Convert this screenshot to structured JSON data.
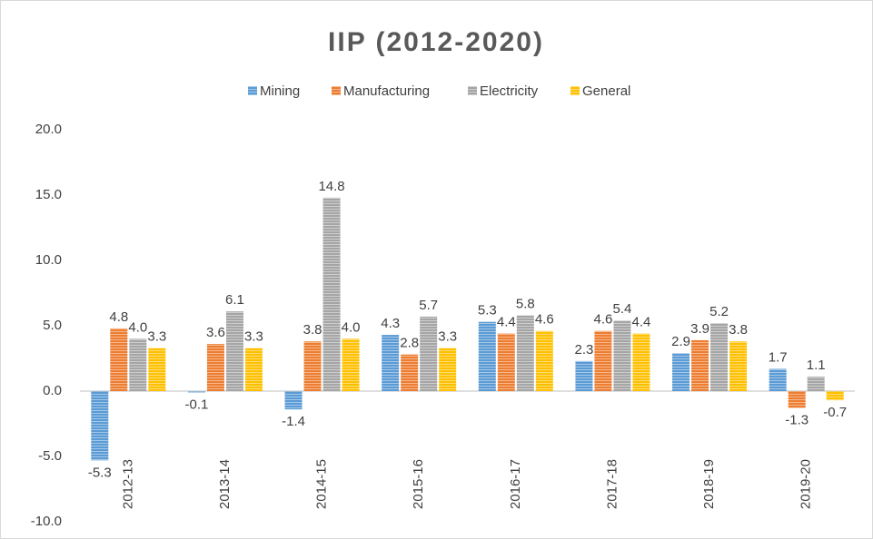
{
  "chart_data": {
    "type": "bar",
    "title": "IIP (2012-2020)",
    "categories": [
      "2012-13",
      "2013-14",
      "2014-15",
      "2015-16",
      "2016-17",
      "2017-18",
      "2018-19",
      "2019-20"
    ],
    "series": [
      {
        "name": "Mining",
        "color": "#5b9bd5",
        "values": [
          -5.3,
          -0.1,
          -1.4,
          4.3,
          5.3,
          2.3,
          2.9,
          1.7
        ],
        "value_labels": [
          "-5.3",
          "-0.1",
          "-1.4",
          "4.3",
          "5.3",
          "2.3",
          "2.9",
          "1.7"
        ]
      },
      {
        "name": "Manufacturing",
        "color": "#ed7d31",
        "values": [
          4.8,
          3.6,
          3.8,
          2.8,
          4.4,
          4.6,
          3.9,
          -1.3
        ],
        "value_labels": [
          "4.8",
          "3.6",
          "3.8",
          "2.8",
          "4.4",
          "4.6",
          "3.9",
          "-1.3"
        ]
      },
      {
        "name": "Electricity",
        "color": "#a5a5a5",
        "values": [
          4.0,
          6.1,
          14.8,
          5.7,
          5.8,
          5.4,
          5.2,
          1.1
        ],
        "value_labels": [
          "4.0",
          "6.1",
          "14.8",
          "5.7",
          "5.8",
          "5.4",
          "5.2",
          "1.1"
        ]
      },
      {
        "name": "General",
        "color": "#ffc000",
        "values": [
          3.3,
          3.3,
          4.0,
          3.3,
          4.6,
          4.4,
          3.8,
          -0.7
        ],
        "value_labels": [
          "3.3",
          "3.3",
          "4.0",
          "3.3",
          "4.6",
          "4.4",
          "3.8",
          "-0.7"
        ]
      }
    ],
    "ylim": [
      -10,
      20
    ],
    "yticks": [
      {
        "value": -10,
        "label": "-10.0"
      },
      {
        "value": -5,
        "label": "-5.0"
      },
      {
        "value": 0,
        "label": "0.0"
      },
      {
        "value": 5,
        "label": "5.0"
      },
      {
        "value": 10,
        "label": "10.0"
      },
      {
        "value": 15,
        "label": "15.0"
      },
      {
        "value": 20,
        "label": "20.0"
      }
    ],
    "grid": false,
    "legend": "top"
  }
}
